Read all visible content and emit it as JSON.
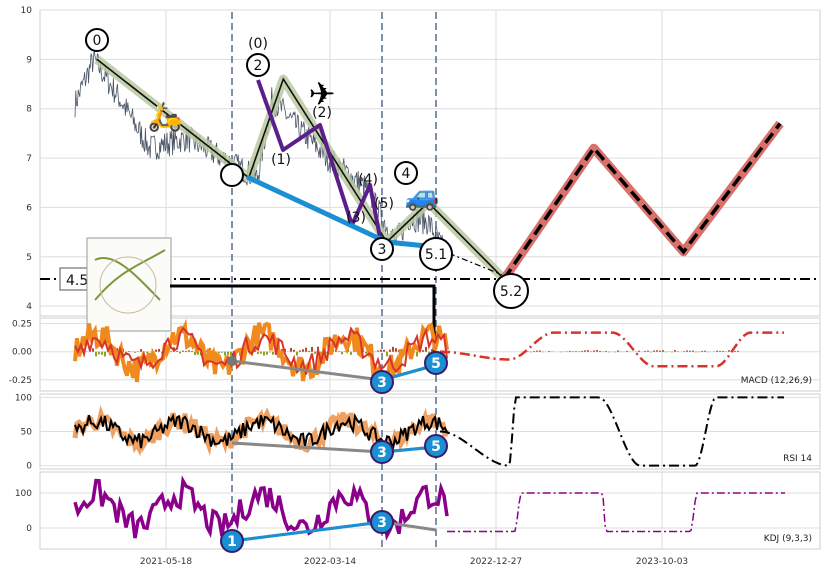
{
  "chart_data": [
    {
      "type": "line",
      "panel": "price",
      "ylim": [
        3.8,
        10
      ],
      "yticks": [
        "4",
        "5",
        "6",
        "7",
        "8",
        "9",
        "10"
      ],
      "xticks": [
        "2021-05-18",
        "2022-03-14",
        "2022-12-27",
        "2023-10-03"
      ],
      "hline": 4.55,
      "hline_label": "4.5",
      "wave_labels": [
        "0",
        "(0)",
        "2",
        "(2)",
        "(1)",
        "(4)",
        "(3)",
        "(5)",
        "3",
        "4",
        "5.1",
        "5.2"
      ],
      "series": [
        {
          "points": [
            [
              0.0,
              9.0
            ],
            [
              0.22,
              6.6
            ],
            [
              0.27,
              8.6
            ],
            [
              0.42,
              5.3
            ],
            [
              0.48,
              6.1
            ],
            [
              0.59,
              4.55
            ]
          ]
        },
        {
          "points": [
            [
              0.59,
              4.55
            ],
            [
              0.72,
              7.2
            ],
            [
              0.85,
              5.1
            ],
            [
              0.99,
              7.7
            ]
          ]
        },
        {
          "points": [
            [
              0.22,
              6.6
            ],
            [
              0.42,
              5.3
            ],
            [
              0.49,
              5.2
            ]
          ]
        }
      ]
    },
    {
      "type": "line",
      "panel": "macd",
      "label": "MACD (12,26,9)",
      "ylim": [
        -0.35,
        0.3
      ],
      "yticks": [
        "0.25",
        "0.00",
        "-0.25"
      ],
      "badges": [
        "3",
        "5"
      ]
    },
    {
      "type": "line",
      "panel": "rsi",
      "label": "RSI 14",
      "ylim": [
        -5,
        105
      ],
      "yticks": [
        "100",
        "50",
        "0"
      ],
      "badges": [
        "3",
        "5"
      ]
    },
    {
      "type": "line",
      "panel": "kdj",
      "label": "KDJ (9,3,3)",
      "ylim": [
        -60,
        160
      ],
      "yticks": [
        "100",
        "0"
      ],
      "badges": [
        "1",
        "3"
      ]
    }
  ],
  "colors": {
    "price_line": "#4a5566",
    "wave_green": "#b9c9a0",
    "wave_purple": "#5b1f8c",
    "wave_blue": "#1b8fd3",
    "forecast_red": "#d9706a",
    "forecast_brown": "#c06b47",
    "macd_orange": "#f08a1c",
    "macd_red": "#d9342b",
    "kdj_purple": "#8b008b"
  }
}
